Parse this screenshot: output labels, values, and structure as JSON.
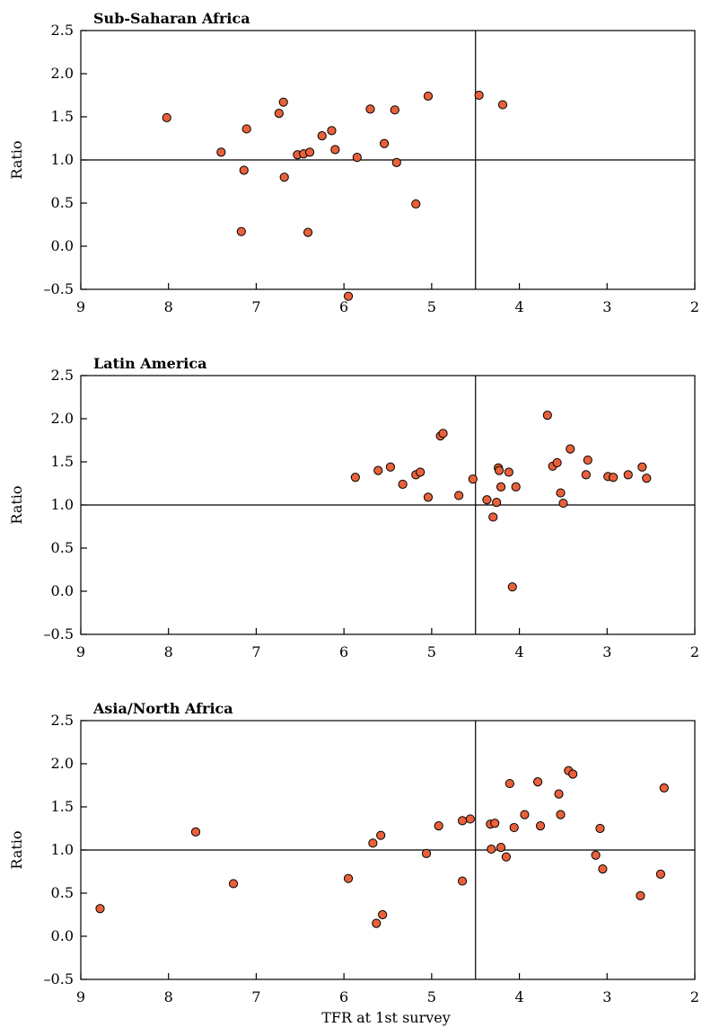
{
  "colors": {
    "point_fill": "#e8613a",
    "point_stroke": "#000000",
    "line": "#000000"
  },
  "chart_data": [
    {
      "type": "scatter",
      "title": "Sub-Saharan Africa",
      "xlabel": "",
      "ylabel": "Ratio",
      "xlim": [
        9,
        2
      ],
      "ylim": [
        -0.5,
        2.5
      ],
      "x_reversed": true,
      "xticks": [
        "9",
        "8",
        "7",
        "6",
        "5",
        "4",
        "3",
        "2"
      ],
      "yticks": [
        "2.5",
        "2.0",
        "1.5",
        "1.0",
        "0.5",
        "0.0",
        "–0.5"
      ],
      "reference_lines": {
        "x": 4.5,
        "y": 1.0
      },
      "points": [
        {
          "x": 8.02,
          "y": 1.49
        },
        {
          "x": 7.4,
          "y": 1.09
        },
        {
          "x": 7.17,
          "y": 0.17
        },
        {
          "x": 7.14,
          "y": 0.88
        },
        {
          "x": 7.11,
          "y": 1.36
        },
        {
          "x": 6.74,
          "y": 1.54
        },
        {
          "x": 6.69,
          "y": 1.67
        },
        {
          "x": 6.68,
          "y": 0.8
        },
        {
          "x": 6.53,
          "y": 1.06
        },
        {
          "x": 6.46,
          "y": 1.07
        },
        {
          "x": 6.41,
          "y": 0.16
        },
        {
          "x": 6.39,
          "y": 1.09
        },
        {
          "x": 6.25,
          "y": 1.28
        },
        {
          "x": 6.14,
          "y": 1.34
        },
        {
          "x": 6.1,
          "y": 1.12
        },
        {
          "x": 5.95,
          "y": -0.58
        },
        {
          "x": 5.85,
          "y": 1.03
        },
        {
          "x": 5.7,
          "y": 1.59
        },
        {
          "x": 5.54,
          "y": 1.19
        },
        {
          "x": 5.42,
          "y": 1.58
        },
        {
          "x": 5.4,
          "y": 0.97
        },
        {
          "x": 5.18,
          "y": 0.49
        },
        {
          "x": 5.04,
          "y": 1.74
        },
        {
          "x": 4.46,
          "y": 1.75
        },
        {
          "x": 4.19,
          "y": 1.64
        }
      ]
    },
    {
      "type": "scatter",
      "title": "Latin America",
      "xlabel": "",
      "ylabel": "Ratio",
      "xlim": [
        9,
        2
      ],
      "ylim": [
        -0.5,
        2.5
      ],
      "x_reversed": true,
      "xticks": [
        "9",
        "8",
        "7",
        "6",
        "5",
        "4",
        "3",
        "2"
      ],
      "yticks": [
        "2.5",
        "2.0",
        "1.5",
        "1.0",
        "0.5",
        "0.0",
        "–0.5"
      ],
      "reference_lines": {
        "x": 4.5,
        "y": 1.0
      },
      "points": [
        {
          "x": 5.87,
          "y": 1.32
        },
        {
          "x": 5.61,
          "y": 1.4
        },
        {
          "x": 5.47,
          "y": 1.44
        },
        {
          "x": 5.33,
          "y": 1.24
        },
        {
          "x": 5.18,
          "y": 1.35
        },
        {
          "x": 5.13,
          "y": 1.38
        },
        {
          "x": 5.04,
          "y": 1.09
        },
        {
          "x": 4.9,
          "y": 1.8
        },
        {
          "x": 4.87,
          "y": 1.83
        },
        {
          "x": 4.69,
          "y": 1.11
        },
        {
          "x": 4.53,
          "y": 1.3
        },
        {
          "x": 4.37,
          "y": 1.06
        },
        {
          "x": 4.3,
          "y": 0.86
        },
        {
          "x": 4.26,
          "y": 1.03
        },
        {
          "x": 4.24,
          "y": 1.43
        },
        {
          "x": 4.23,
          "y": 1.4
        },
        {
          "x": 4.21,
          "y": 1.21
        },
        {
          "x": 4.12,
          "y": 1.38
        },
        {
          "x": 4.08,
          "y": 0.05
        },
        {
          "x": 4.04,
          "y": 1.21
        },
        {
          "x": 3.68,
          "y": 2.04
        },
        {
          "x": 3.62,
          "y": 1.45
        },
        {
          "x": 3.57,
          "y": 1.49
        },
        {
          "x": 3.53,
          "y": 1.14
        },
        {
          "x": 3.5,
          "y": 1.02
        },
        {
          "x": 3.42,
          "y": 1.65
        },
        {
          "x": 3.22,
          "y": 1.52
        },
        {
          "x": 3.24,
          "y": 1.35
        },
        {
          "x": 2.99,
          "y": 1.33
        },
        {
          "x": 2.93,
          "y": 1.32
        },
        {
          "x": 2.76,
          "y": 1.35
        },
        {
          "x": 2.6,
          "y": 1.44
        },
        {
          "x": 2.55,
          "y": 1.31
        }
      ]
    },
    {
      "type": "scatter",
      "title": "Asia/North Africa",
      "xlabel": "TFR at 1st survey",
      "ylabel": "Ratio",
      "xlim": [
        9,
        2
      ],
      "ylim": [
        -0.5,
        2.5
      ],
      "x_reversed": true,
      "xticks": [
        "9",
        "8",
        "7",
        "6",
        "5",
        "4",
        "3",
        "2"
      ],
      "yticks": [
        "2.5",
        "2.0",
        "1.5",
        "1.0",
        "0.5",
        "0.0",
        "–0.5"
      ],
      "reference_lines": {
        "x": 4.5,
        "y": 1.0
      },
      "points": [
        {
          "x": 8.78,
          "y": 0.32
        },
        {
          "x": 7.69,
          "y": 1.21
        },
        {
          "x": 7.26,
          "y": 0.61
        },
        {
          "x": 5.95,
          "y": 0.67
        },
        {
          "x": 5.67,
          "y": 1.08
        },
        {
          "x": 5.63,
          "y": 0.15
        },
        {
          "x": 5.58,
          "y": 1.17
        },
        {
          "x": 5.56,
          "y": 0.25
        },
        {
          "x": 5.06,
          "y": 0.96
        },
        {
          "x": 4.92,
          "y": 1.28
        },
        {
          "x": 4.65,
          "y": 0.64
        },
        {
          "x": 4.65,
          "y": 1.34
        },
        {
          "x": 4.56,
          "y": 1.36
        },
        {
          "x": 4.33,
          "y": 1.3
        },
        {
          "x": 4.32,
          "y": 1.01
        },
        {
          "x": 4.28,
          "y": 1.31
        },
        {
          "x": 4.21,
          "y": 1.03
        },
        {
          "x": 4.15,
          "y": 0.92
        },
        {
          "x": 4.11,
          "y": 1.77
        },
        {
          "x": 4.06,
          "y": 1.26
        },
        {
          "x": 3.94,
          "y": 1.41
        },
        {
          "x": 3.79,
          "y": 1.79
        },
        {
          "x": 3.76,
          "y": 1.28
        },
        {
          "x": 3.55,
          "y": 1.65
        },
        {
          "x": 3.53,
          "y": 1.41
        },
        {
          "x": 3.44,
          "y": 1.92
        },
        {
          "x": 3.39,
          "y": 1.88
        },
        {
          "x": 3.13,
          "y": 0.94
        },
        {
          "x": 3.08,
          "y": 1.25
        },
        {
          "x": 3.05,
          "y": 0.78
        },
        {
          "x": 2.62,
          "y": 0.47
        },
        {
          "x": 2.39,
          "y": 0.72
        },
        {
          "x": 2.35,
          "y": 1.72
        }
      ]
    }
  ]
}
